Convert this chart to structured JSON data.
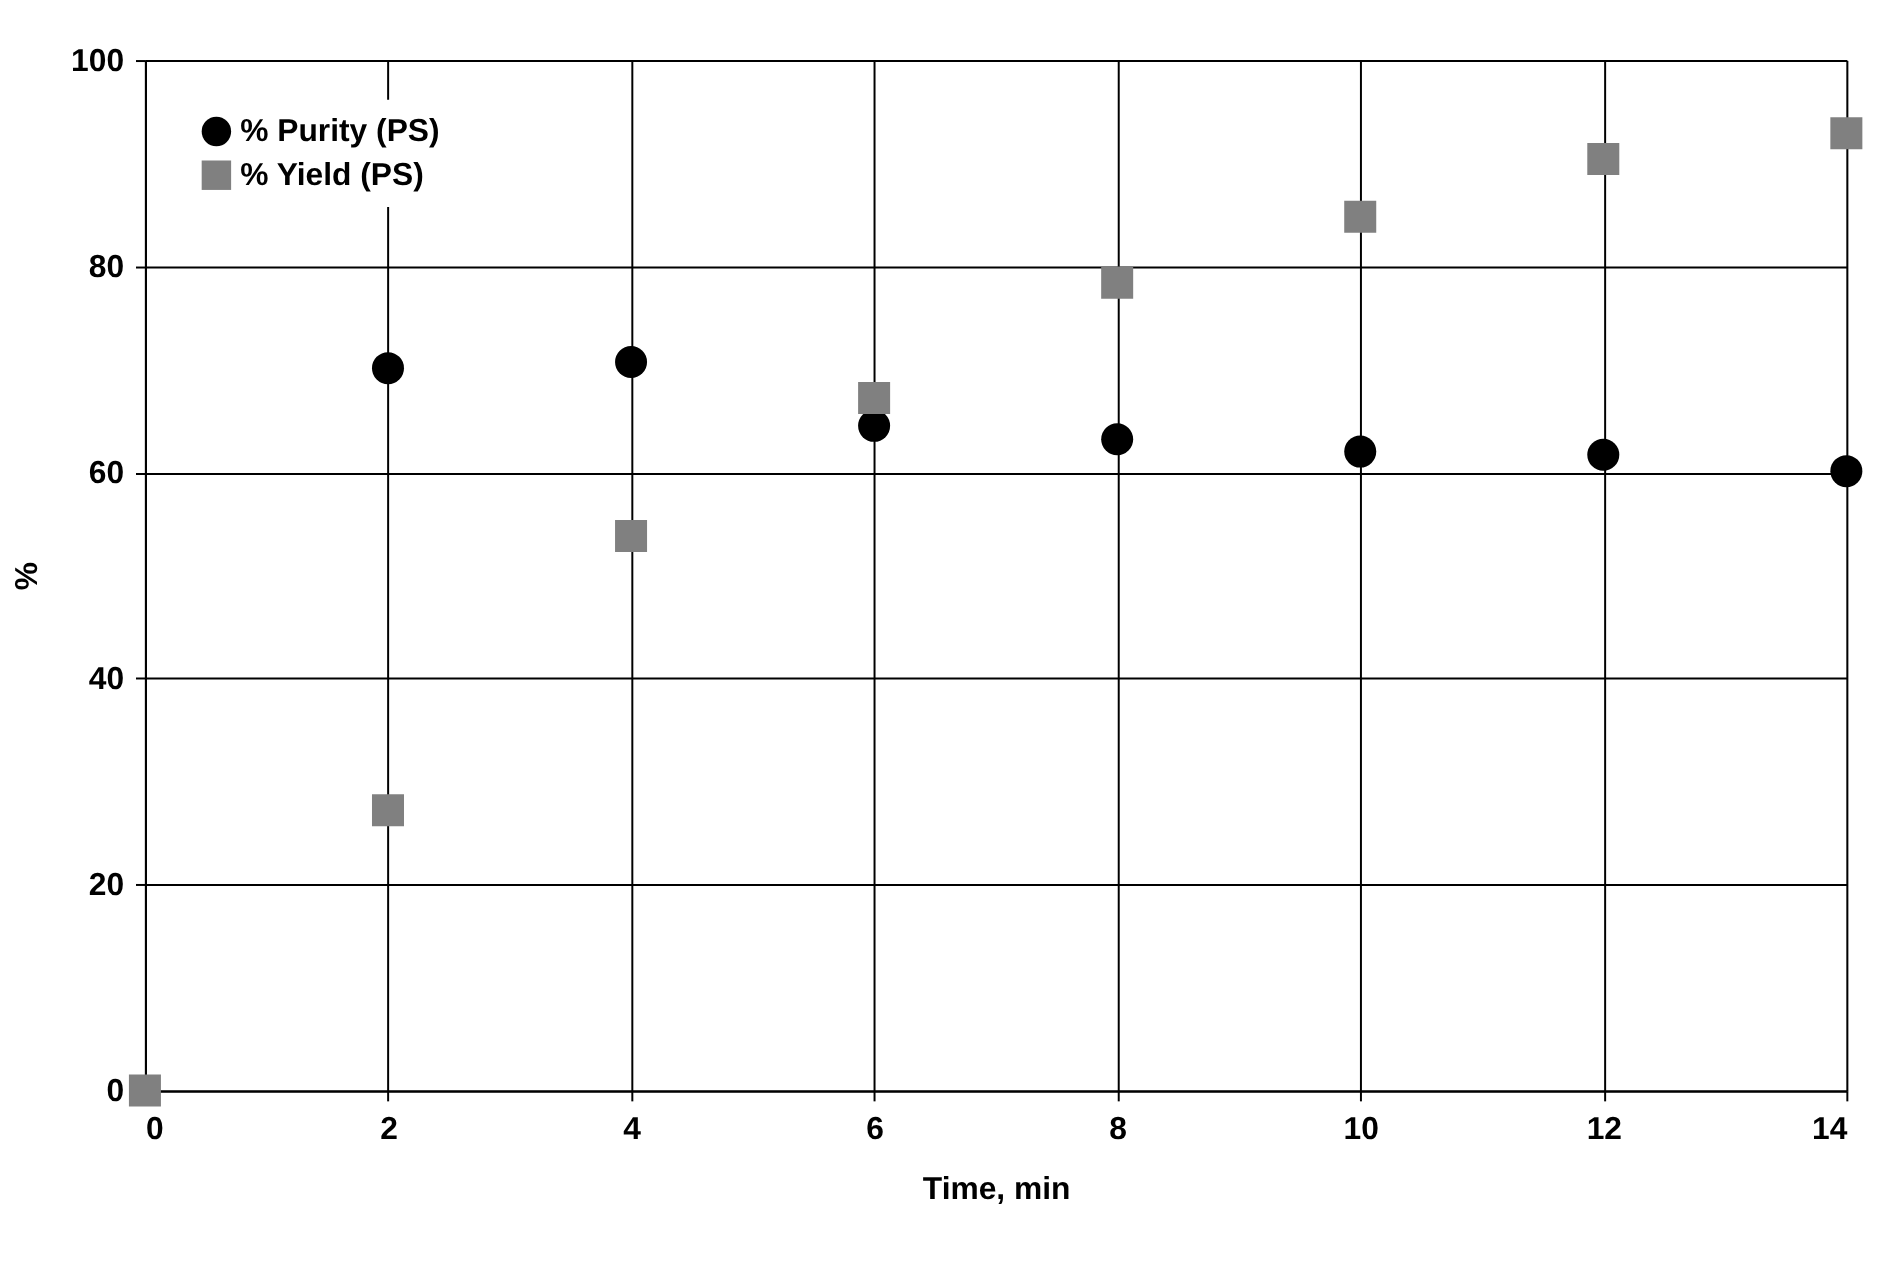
{
  "chart_data": {
    "type": "scatter",
    "xlabel": "Time, min",
    "ylabel": "%",
    "x": [
      0,
      2,
      4,
      6,
      8,
      10,
      12,
      14
    ],
    "series": [
      {
        "name": "% Purity (PS)",
        "color": "#000000",
        "marker": "circle",
        "values": [
          null,
          70.1,
          70.7,
          64.5,
          63.2,
          62.0,
          61.7,
          60.1
        ]
      },
      {
        "name": "% Yield (PS)",
        "color": "#808080",
        "marker": "square",
        "values": [
          0,
          27.2,
          53.8,
          67.2,
          78.4,
          84.8,
          90.4,
          92.9
        ]
      }
    ],
    "xlim": [
      0,
      14
    ],
    "xticks": [
      0,
      2,
      4,
      6,
      8,
      10,
      12,
      14
    ],
    "ylim": [
      0,
      100
    ],
    "yticks": [
      0,
      20,
      40,
      60,
      80,
      100
    ],
    "grid": true,
    "legend": "top left"
  }
}
